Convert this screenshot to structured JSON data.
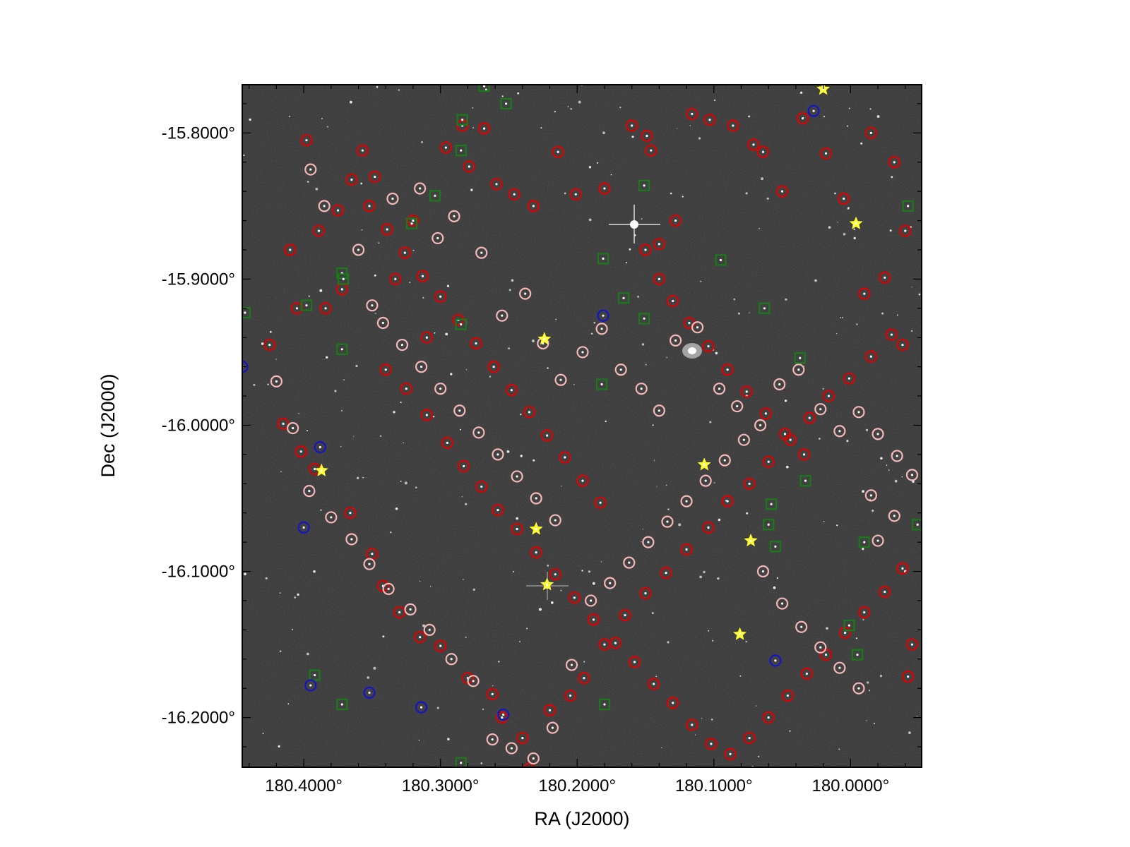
{
  "chart_data": {
    "type": "scatter",
    "title": "",
    "xlabel": "RA (J2000)",
    "ylabel": "Dec (J2000)",
    "xlim": [
      180.445,
      179.948
    ],
    "ylim": [
      -16.234,
      -15.767
    ],
    "x_ticks": [
      {
        "value": 180.4,
        "label": "180.4000°"
      },
      {
        "value": 180.3,
        "label": "180.3000°"
      },
      {
        "value": 180.2,
        "label": "180.2000°"
      },
      {
        "value": 180.1,
        "label": "180.1000°"
      },
      {
        "value": 180.0,
        "label": "180.0000°"
      }
    ],
    "y_ticks": [
      {
        "value": -15.8,
        "label": "-15.8000°"
      },
      {
        "value": -15.9,
        "label": "-15.9000°"
      },
      {
        "value": -16.0,
        "label": "-16.0000°"
      },
      {
        "value": -16.1,
        "label": "-16.1000°"
      },
      {
        "value": -16.2,
        "label": "-16.2000°"
      }
    ],
    "minor_step": 0.02,
    "background": "grayscale sky image",
    "legend": "none",
    "grid": false,
    "series": [
      {
        "marker": "circle",
        "color": "#e00000",
        "points": [
          [
            180.398,
            -15.805
          ],
          [
            180.389,
            -15.867
          ],
          [
            180.375,
            -15.853
          ],
          [
            180.372,
            -15.907
          ],
          [
            180.384,
            -15.92
          ],
          [
            180.357,
            -15.812
          ],
          [
            180.348,
            -15.83
          ],
          [
            180.32,
            -15.86
          ],
          [
            180.333,
            -15.9
          ],
          [
            180.31,
            -15.94
          ],
          [
            180.296,
            -15.81
          ],
          [
            180.284,
            -15.795
          ],
          [
            180.279,
            -15.823
          ],
          [
            180.268,
            -15.797
          ],
          [
            180.259,
            -15.835
          ],
          [
            180.246,
            -15.842
          ],
          [
            180.232,
            -15.85
          ],
          [
            180.214,
            -15.813
          ],
          [
            180.201,
            -15.842
          ],
          [
            180.18,
            -15.838
          ],
          [
            180.16,
            -15.795
          ],
          [
            180.149,
            -15.802
          ],
          [
            180.146,
            -15.812
          ],
          [
            180.14,
            -15.876
          ],
          [
            180.128,
            -15.86
          ],
          [
            180.116,
            -15.787
          ],
          [
            180.103,
            -15.791
          ],
          [
            180.086,
            -15.795
          ],
          [
            180.071,
            -15.808
          ],
          [
            180.064,
            -15.813
          ],
          [
            180.05,
            -15.84
          ],
          [
            180.035,
            -15.79
          ],
          [
            180.018,
            -15.814
          ],
          [
            180.005,
            -15.845
          ],
          [
            179.985,
            -15.8
          ],
          [
            179.968,
            -15.82
          ],
          [
            179.96,
            -15.867
          ],
          [
            179.962,
            -15.945
          ],
          [
            179.975,
            -15.899
          ],
          [
            179.99,
            -15.91
          ],
          [
            180.41,
            -15.88
          ],
          [
            180.425,
            -15.945
          ],
          [
            180.405,
            -15.92
          ],
          [
            180.415,
            -15.999
          ],
          [
            180.402,
            -16.018
          ],
          [
            180.392,
            -16.03
          ],
          [
            180.366,
            -16.06
          ],
          [
            180.35,
            -16.088
          ],
          [
            180.342,
            -16.11
          ],
          [
            180.33,
            -16.128
          ],
          [
            180.315,
            -16.145
          ],
          [
            180.3,
            -16.151
          ],
          [
            180.28,
            -16.173
          ],
          [
            180.262,
            -16.184
          ],
          [
            180.255,
            -16.2
          ],
          [
            180.24,
            -16.214
          ],
          [
            180.235,
            -16.235
          ],
          [
            180.22,
            -16.195
          ],
          [
            180.205,
            -16.185
          ],
          [
            180.195,
            -16.173
          ],
          [
            180.18,
            -16.15
          ],
          [
            180.165,
            -16.13
          ],
          [
            180.15,
            -16.115
          ],
          [
            180.135,
            -16.101
          ],
          [
            180.12,
            -16.085
          ],
          [
            180.104,
            -16.07
          ],
          [
            180.09,
            -16.052
          ],
          [
            180.074,
            -16.04
          ],
          [
            180.06,
            -16.025
          ],
          [
            180.044,
            -16.01
          ],
          [
            180.03,
            -15.995
          ],
          [
            180.016,
            -15.98
          ],
          [
            180.001,
            -15.968
          ],
          [
            179.985,
            -15.953
          ],
          [
            179.97,
            -15.938
          ],
          [
            180.34,
            -15.962
          ],
          [
            180.325,
            -15.975
          ],
          [
            180.31,
            -15.993
          ],
          [
            180.295,
            -16.012
          ],
          [
            180.283,
            -16.028
          ],
          [
            180.27,
            -16.042
          ],
          [
            180.258,
            -16.058
          ],
          [
            180.244,
            -16.071
          ],
          [
            180.23,
            -16.087
          ],
          [
            180.216,
            -16.102
          ],
          [
            180.202,
            -16.118
          ],
          [
            180.188,
            -16.133
          ],
          [
            180.172,
            -16.149
          ],
          [
            180.158,
            -16.162
          ],
          [
            180.144,
            -16.177
          ],
          [
            180.13,
            -16.19
          ],
          [
            180.116,
            -16.205
          ],
          [
            180.102,
            -16.218
          ],
          [
            180.088,
            -16.225
          ],
          [
            180.074,
            -16.214
          ],
          [
            180.06,
            -16.2
          ],
          [
            180.046,
            -16.185
          ],
          [
            180.032,
            -16.17
          ],
          [
            180.018,
            -16.157
          ],
          [
            180.004,
            -16.142
          ],
          [
            179.99,
            -16.128
          ],
          [
            179.975,
            -16.114
          ],
          [
            179.962,
            -16.098
          ],
          [
            179.955,
            -16.15
          ],
          [
            179.958,
            -16.172
          ],
          [
            180.15,
            -15.88
          ],
          [
            180.14,
            -15.9
          ],
          [
            180.13,
            -15.915
          ],
          [
            180.118,
            -15.93
          ],
          [
            180.104,
            -15.946
          ],
          [
            180.09,
            -15.962
          ],
          [
            180.076,
            -15.977
          ],
          [
            180.062,
            -15.992
          ],
          [
            180.048,
            -16.006
          ],
          [
            180.034,
            -16.02
          ],
          [
            180.365,
            -15.832
          ],
          [
            180.352,
            -15.85
          ],
          [
            180.339,
            -15.866
          ],
          [
            180.326,
            -15.882
          ],
          [
            180.313,
            -15.898
          ],
          [
            180.3,
            -15.912
          ],
          [
            180.287,
            -15.928
          ],
          [
            180.274,
            -15.944
          ],
          [
            180.261,
            -15.96
          ],
          [
            180.248,
            -15.976
          ],
          [
            180.235,
            -15.991
          ],
          [
            180.222,
            -16.007
          ],
          [
            180.209,
            -16.022
          ],
          [
            180.196,
            -16.038
          ],
          [
            180.183,
            -16.053
          ]
        ]
      },
      {
        "marker": "circle",
        "color": "#f4b8b8",
        "points": [
          [
            180.395,
            -15.825
          ],
          [
            180.385,
            -15.85
          ],
          [
            180.36,
            -15.88
          ],
          [
            180.35,
            -15.918
          ],
          [
            180.335,
            -15.845
          ],
          [
            180.315,
            -15.838
          ],
          [
            180.302,
            -15.872
          ],
          [
            180.29,
            -15.857
          ],
          [
            180.27,
            -15.882
          ],
          [
            180.255,
            -15.925
          ],
          [
            180.238,
            -15.91
          ],
          [
            180.225,
            -15.944
          ],
          [
            180.212,
            -15.969
          ],
          [
            180.196,
            -15.95
          ],
          [
            180.182,
            -15.934
          ],
          [
            180.168,
            -15.962
          ],
          [
            180.153,
            -15.975
          ],
          [
            180.14,
            -15.99
          ],
          [
            180.128,
            -15.942
          ],
          [
            180.112,
            -15.933
          ],
          [
            180.096,
            -15.975
          ],
          [
            180.083,
            -15.987
          ],
          [
            180.066,
            -16.0
          ],
          [
            180.052,
            -15.972
          ],
          [
            180.038,
            -15.962
          ],
          [
            180.022,
            -15.989
          ],
          [
            180.008,
            -16.004
          ],
          [
            179.994,
            -15.991
          ],
          [
            179.98,
            -16.006
          ],
          [
            179.966,
            -16.021
          ],
          [
            180.42,
            -15.97
          ],
          [
            180.408,
            -16.002
          ],
          [
            180.396,
            -16.045
          ],
          [
            180.38,
            -16.063
          ],
          [
            180.365,
            -16.078
          ],
          [
            180.352,
            -16.095
          ],
          [
            180.338,
            -16.112
          ],
          [
            180.322,
            -16.126
          ],
          [
            180.308,
            -16.14
          ],
          [
            180.292,
            -16.16
          ],
          [
            180.276,
            -16.175
          ],
          [
            180.262,
            -16.215
          ],
          [
            180.248,
            -16.221
          ],
          [
            180.232,
            -16.228
          ],
          [
            180.218,
            -16.207
          ],
          [
            180.204,
            -16.164
          ],
          [
            180.19,
            -16.12
          ],
          [
            180.176,
            -16.108
          ],
          [
            180.162,
            -16.094
          ],
          [
            180.148,
            -16.08
          ],
          [
            180.134,
            -16.066
          ],
          [
            180.12,
            -16.052
          ],
          [
            180.106,
            -16.038
          ],
          [
            180.092,
            -16.024
          ],
          [
            180.078,
            -16.01
          ],
          [
            180.064,
            -16.1
          ],
          [
            180.05,
            -16.122
          ],
          [
            180.036,
            -16.138
          ],
          [
            180.022,
            -16.152
          ],
          [
            180.008,
            -16.166
          ],
          [
            179.994,
            -16.18
          ],
          [
            179.98,
            -16.079
          ],
          [
            179.968,
            -16.062
          ],
          [
            179.955,
            -16.034
          ],
          [
            179.985,
            -16.048
          ],
          [
            180.342,
            -15.93
          ],
          [
            180.328,
            -15.945
          ],
          [
            180.314,
            -15.96
          ],
          [
            180.3,
            -15.975
          ],
          [
            180.286,
            -15.99
          ],
          [
            180.272,
            -16.005
          ],
          [
            180.258,
            -16.02
          ],
          [
            180.244,
            -16.035
          ],
          [
            180.23,
            -16.05
          ],
          [
            180.216,
            -16.065
          ]
        ]
      },
      {
        "marker": "square",
        "color": "#1a7a1a",
        "points": [
          [
            180.268,
            -15.768
          ],
          [
            180.252,
            -15.78
          ],
          [
            180.284,
            -15.791
          ],
          [
            180.285,
            -15.812
          ],
          [
            180.304,
            -15.843
          ],
          [
            180.321,
            -15.862
          ],
          [
            180.372,
            -15.896
          ],
          [
            180.371,
            -15.9
          ],
          [
            180.398,
            -15.918
          ],
          [
            180.443,
            -15.923
          ],
          [
            180.372,
            -15.948
          ],
          [
            180.285,
            -15.931
          ],
          [
            180.181,
            -15.886
          ],
          [
            180.151,
            -15.836
          ],
          [
            180.166,
            -15.913
          ],
          [
            180.151,
            -15.927
          ],
          [
            180.182,
            -15.972
          ],
          [
            180.095,
            -15.887
          ],
          [
            180.063,
            -15.92
          ],
          [
            180.037,
            -15.954
          ],
          [
            180.033,
            -16.038
          ],
          [
            180.058,
            -16.054
          ],
          [
            180.06,
            -16.068
          ],
          [
            180.055,
            -16.083
          ],
          [
            179.99,
            -16.08
          ],
          [
            180.001,
            -16.137
          ],
          [
            179.995,
            -16.157
          ],
          [
            179.958,
            -15.85
          ],
          [
            179.951,
            -16.068
          ],
          [
            180.18,
            -16.191
          ],
          [
            180.392,
            -16.171
          ],
          [
            180.372,
            -16.191
          ],
          [
            180.285,
            -16.231
          ]
        ]
      },
      {
        "marker": "circle",
        "color": "#1414c8",
        "points": [
          [
            180.027,
            -15.785
          ],
          [
            180.181,
            -15.925
          ],
          [
            180.445,
            -15.96
          ],
          [
            180.388,
            -16.015
          ],
          [
            180.4,
            -16.07
          ],
          [
            180.395,
            -16.178
          ],
          [
            180.352,
            -16.183
          ],
          [
            180.314,
            -16.193
          ],
          [
            180.254,
            -16.198
          ],
          [
            180.055,
            -16.161
          ]
        ]
      },
      {
        "marker": "star",
        "color": "#ffff33",
        "points": [
          [
            180.02,
            -15.77
          ],
          [
            179.996,
            -15.862
          ],
          [
            180.224,
            -15.941
          ],
          [
            180.107,
            -16.027
          ],
          [
            180.387,
            -16.031
          ],
          [
            180.23,
            -16.071
          ],
          [
            180.073,
            -16.079
          ],
          [
            180.222,
            -16.109
          ],
          [
            180.081,
            -16.143
          ]
        ]
      }
    ]
  }
}
